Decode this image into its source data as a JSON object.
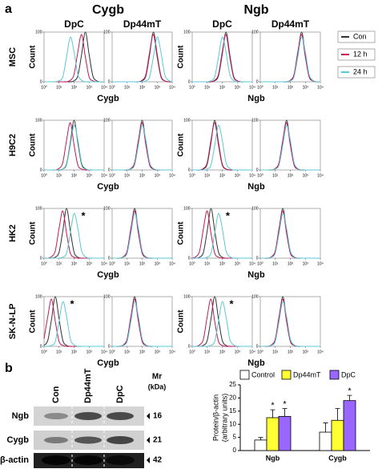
{
  "panel_labels": [
    "a",
    "b"
  ],
  "chart_data": [
    {
      "type": "line",
      "groups": [
        "Cygb",
        "Ngb"
      ],
      "columns": [
        "DpC",
        "Dp44mT",
        "DpC",
        "Dp44mT"
      ],
      "rows": [
        "MSC",
        "H9C2",
        "HK2",
        "SK-N-LP"
      ],
      "ylabel": "Count",
      "x": [
        0,
        0.25,
        0.5,
        0.75,
        1,
        1.25,
        1.5,
        1.75,
        2,
        2.25,
        2.5,
        2.75,
        3,
        3.25,
        3.5,
        3.75,
        4
      ],
      "xlim": [
        0,
        4
      ],
      "ylim": [
        0,
        100
      ],
      "xticks": [
        {
          "value": 0,
          "label": "10⁰"
        },
        {
          "value": 1,
          "label": "10¹"
        },
        {
          "value": 2,
          "label": "10²"
        },
        {
          "value": 3,
          "label": "10³"
        },
        {
          "value": 4,
          "label": "10⁴"
        }
      ],
      "yticks": [
        0,
        100
      ],
      "legend": [
        {
          "name": "Con",
          "color": "#333333"
        },
        {
          "name": "12 h",
          "color": "#c2185b"
        },
        {
          "name": "24 h",
          "color": "#5bc8d8"
        }
      ],
      "panels": [
        {
          "values": [
            [
              0,
              0,
              0,
              0,
              0,
              0,
              0,
              0,
              2,
              12,
              55,
              100,
              55,
              12,
              2,
              0,
              0
            ],
            [
              0,
              0,
              0,
              0,
              0,
              0,
              0,
              3,
              15,
              60,
              95,
              50,
              10,
              2,
              0,
              0,
              0
            ],
            [
              0,
              0,
              0,
              0,
              2,
              10,
              50,
              90,
              60,
              15,
              3,
              0,
              0,
              0,
              0,
              0,
              0
            ]
          ]
        },
        {
          "values": [
            [
              0,
              0,
              0,
              0,
              0,
              0,
              0,
              0,
              2,
              12,
              55,
              100,
              55,
              12,
              2,
              0,
              0
            ],
            [
              0,
              0,
              0,
              0,
              0,
              0,
              0,
              0,
              3,
              15,
              60,
              95,
              50,
              10,
              2,
              0,
              0
            ],
            [
              0,
              0,
              0,
              0,
              0,
              0,
              0,
              0,
              0,
              2,
              10,
              50,
              90,
              60,
              15,
              3,
              0
            ]
          ]
        },
        {
          "values": [
            [
              0,
              0,
              0,
              0,
              0,
              0,
              2,
              12,
              55,
              100,
              55,
              12,
              2,
              0,
              0,
              0,
              0
            ],
            [
              0,
              0,
              0,
              0,
              0,
              0,
              3,
              15,
              60,
              95,
              50,
              10,
              2,
              0,
              0,
              0,
              0
            ],
            [
              0,
              0,
              0,
              0,
              0,
              2,
              10,
              50,
              90,
              60,
              15,
              3,
              0,
              0,
              0,
              0,
              0
            ]
          ]
        },
        {
          "values": [
            [
              0,
              0,
              0,
              0,
              0,
              0,
              0,
              0,
              2,
              12,
              55,
              100,
              55,
              12,
              2,
              0,
              0
            ],
            [
              0,
              0,
              0,
              0,
              0,
              0,
              0,
              0,
              3,
              15,
              60,
              95,
              50,
              10,
              2,
              0,
              0
            ],
            [
              0,
              0,
              0,
              0,
              0,
              0,
              0,
              0,
              2,
              10,
              50,
              90,
              60,
              15,
              3,
              0,
              0
            ]
          ]
        },
        {
          "values": [
            [
              0,
              0,
              0,
              0,
              0,
              2,
              12,
              55,
              100,
              55,
              12,
              2,
              0,
              0,
              0,
              0,
              0
            ],
            [
              0,
              0,
              0,
              0,
              3,
              15,
              60,
              95,
              50,
              10,
              2,
              0,
              0,
              0,
              0,
              0,
              0
            ],
            [
              0,
              0,
              0,
              0,
              0,
              2,
              10,
              50,
              90,
              60,
              15,
              3,
              0,
              0,
              0,
              0,
              0
            ]
          ]
        },
        {
          "values": [
            [
              0,
              0,
              0,
              0,
              0,
              2,
              12,
              55,
              100,
              55,
              12,
              2,
              0,
              0,
              0,
              0,
              0
            ],
            [
              0,
              0,
              0,
              0,
              0,
              3,
              15,
              60,
              95,
              50,
              10,
              2,
              0,
              0,
              0,
              0,
              0
            ],
            [
              0,
              0,
              0,
              0,
              0,
              2,
              10,
              50,
              90,
              60,
              15,
              3,
              0,
              0,
              0,
              0,
              0
            ]
          ]
        },
        {
          "values": [
            [
              0,
              0,
              0,
              2,
              12,
              55,
              100,
              55,
              12,
              2,
              0,
              0,
              0,
              0,
              0,
              0,
              0
            ],
            [
              0,
              0,
              0,
              3,
              15,
              60,
              95,
              50,
              10,
              2,
              0,
              0,
              0,
              0,
              0,
              0,
              0
            ],
            [
              0,
              0,
              0,
              0,
              2,
              10,
              50,
              90,
              60,
              15,
              3,
              0,
              0,
              0,
              0,
              0,
              0
            ]
          ]
        },
        {
          "values": [
            [
              0,
              0,
              0,
              0,
              2,
              12,
              55,
              100,
              55,
              12,
              2,
              0,
              0,
              0,
              0,
              0,
              0
            ],
            [
              0,
              0,
              0,
              0,
              3,
              15,
              60,
              95,
              50,
              10,
              2,
              0,
              0,
              0,
              0,
              0,
              0
            ],
            [
              0,
              0,
              0,
              0,
              2,
              10,
              50,
              90,
              60,
              15,
              3,
              0,
              0,
              0,
              0,
              0,
              0
            ]
          ]
        },
        {
          "values": [
            [
              0,
              0,
              0,
              2,
              12,
              55,
              100,
              55,
              12,
              2,
              0,
              0,
              0,
              0,
              0,
              0,
              0
            ],
            [
              0,
              0,
              3,
              15,
              60,
              95,
              50,
              10,
              2,
              0,
              0,
              0,
              0,
              0,
              0,
              0,
              0
            ],
            [
              0,
              0,
              0,
              0,
              0,
              2,
              10,
              50,
              90,
              60,
              15,
              3,
              0,
              0,
              0,
              0,
              0
            ]
          ],
          "note": "*"
        },
        {
          "values": [
            [
              0,
              0,
              0,
              2,
              12,
              55,
              100,
              55,
              12,
              2,
              0,
              0,
              0,
              0,
              0,
              0,
              0
            ],
            [
              0,
              0,
              0,
              3,
              15,
              60,
              95,
              50,
              10,
              2,
              0,
              0,
              0,
              0,
              0,
              0,
              0
            ],
            [
              0,
              0,
              0,
              2,
              10,
              50,
              90,
              60,
              15,
              3,
              0,
              0,
              0,
              0,
              0,
              0,
              0
            ]
          ]
        },
        {
          "values": [
            [
              0,
              0,
              2,
              12,
              55,
              100,
              55,
              12,
              2,
              0,
              0,
              0,
              0,
              0,
              0,
              0,
              0
            ],
            [
              0,
              3,
              15,
              60,
              95,
              50,
              10,
              2,
              0,
              0,
              0,
              0,
              0,
              0,
              0,
              0,
              0
            ],
            [
              0,
              0,
              0,
              0,
              2,
              10,
              50,
              90,
              60,
              15,
              3,
              0,
              0,
              0,
              0,
              0,
              0
            ]
          ],
          "note": "*"
        },
        {
          "values": [
            [
              0,
              0,
              0,
              2,
              12,
              55,
              100,
              55,
              12,
              2,
              0,
              0,
              0,
              0,
              0,
              0,
              0
            ],
            [
              0,
              0,
              0,
              3,
              15,
              60,
              95,
              50,
              10,
              2,
              0,
              0,
              0,
              0,
              0,
              0,
              0
            ],
            [
              0,
              0,
              0,
              2,
              10,
              50,
              90,
              60,
              15,
              3,
              0,
              0,
              0,
              0,
              0,
              0,
              0
            ]
          ]
        },
        {
          "values": [
            [
              2,
              12,
              55,
              100,
              55,
              12,
              2,
              0,
              0,
              0,
              0,
              0,
              0,
              0,
              0,
              0,
              0
            ],
            [
              15,
              60,
              95,
              50,
              10,
              2,
              0,
              0,
              0,
              0,
              0,
              0,
              0,
              0,
              0,
              0,
              0
            ],
            [
              0,
              0,
              2,
              10,
              50,
              90,
              60,
              15,
              3,
              0,
              0,
              0,
              0,
              0,
              0,
              0,
              0
            ]
          ],
          "note": "*"
        },
        {
          "values": [
            [
              0,
              0,
              0,
              2,
              12,
              55,
              100,
              55,
              12,
              2,
              0,
              0,
              0,
              0,
              0,
              0,
              0
            ],
            [
              0,
              0,
              0,
              3,
              15,
              60,
              95,
              50,
              10,
              2,
              0,
              0,
              0,
              0,
              0,
              0,
              0
            ],
            [
              0,
              0,
              0,
              2,
              10,
              50,
              90,
              60,
              15,
              3,
              0,
              0,
              0,
              0,
              0,
              0,
              0
            ]
          ]
        },
        {
          "values": [
            [
              0,
              0,
              0,
              2,
              12,
              55,
              100,
              55,
              12,
              2,
              0,
              0,
              0,
              0,
              0,
              0,
              0
            ],
            [
              0,
              0,
              3,
              15,
              60,
              95,
              50,
              10,
              2,
              0,
              0,
              0,
              0,
              0,
              0,
              0,
              0
            ],
            [
              0,
              0,
              0,
              0,
              0,
              2,
              10,
              50,
              90,
              60,
              15,
              3,
              0,
              0,
              0,
              0,
              0
            ]
          ],
          "note": "*"
        },
        {
          "values": [
            [
              0,
              0,
              0,
              2,
              12,
              55,
              100,
              55,
              12,
              2,
              0,
              0,
              0,
              0,
              0,
              0,
              0
            ],
            [
              0,
              0,
              0,
              3,
              15,
              60,
              95,
              50,
              10,
              2,
              0,
              0,
              0,
              0,
              0,
              0,
              0
            ],
            [
              0,
              0,
              0,
              2,
              10,
              50,
              90,
              60,
              15,
              3,
              0,
              0,
              0,
              0,
              0,
              0,
              0
            ]
          ]
        }
      ]
    },
    {
      "type": "bar",
      "categories": [
        "Ngb",
        "Cygb"
      ],
      "ylabel": [
        "Protein/β-actin",
        "(arbitrary units)"
      ],
      "ylim": [
        0,
        25
      ],
      "yticks": [
        0,
        5,
        10,
        15,
        20,
        25
      ],
      "series": [
        {
          "name": "Control",
          "color": "#ffffff",
          "values": [
            4,
            7
          ],
          "errors": [
            1,
            3.5
          ]
        },
        {
          "name": "Dp44mT",
          "color": "#ffff33",
          "values": [
            12.5,
            11.5
          ],
          "errors": [
            3,
            4.5
          ],
          "annotations": [
            "*",
            null
          ]
        },
        {
          "name": "DpC",
          "color": "#9966ff",
          "values": [
            13,
            19
          ],
          "errors": [
            3,
            2
          ],
          "annotations": [
            "*",
            "*"
          ]
        }
      ]
    }
  ],
  "blot": {
    "lanes": [
      "Con",
      "Dp44mT",
      "DpC"
    ],
    "mr_label": "Mr",
    "mr_unit": "(kDa)",
    "bands": [
      {
        "name": "Ngb",
        "mw": 16
      },
      {
        "name": "Cygb",
        "mw": 21
      },
      {
        "name": "β-actin",
        "mw": 42
      }
    ]
  }
}
